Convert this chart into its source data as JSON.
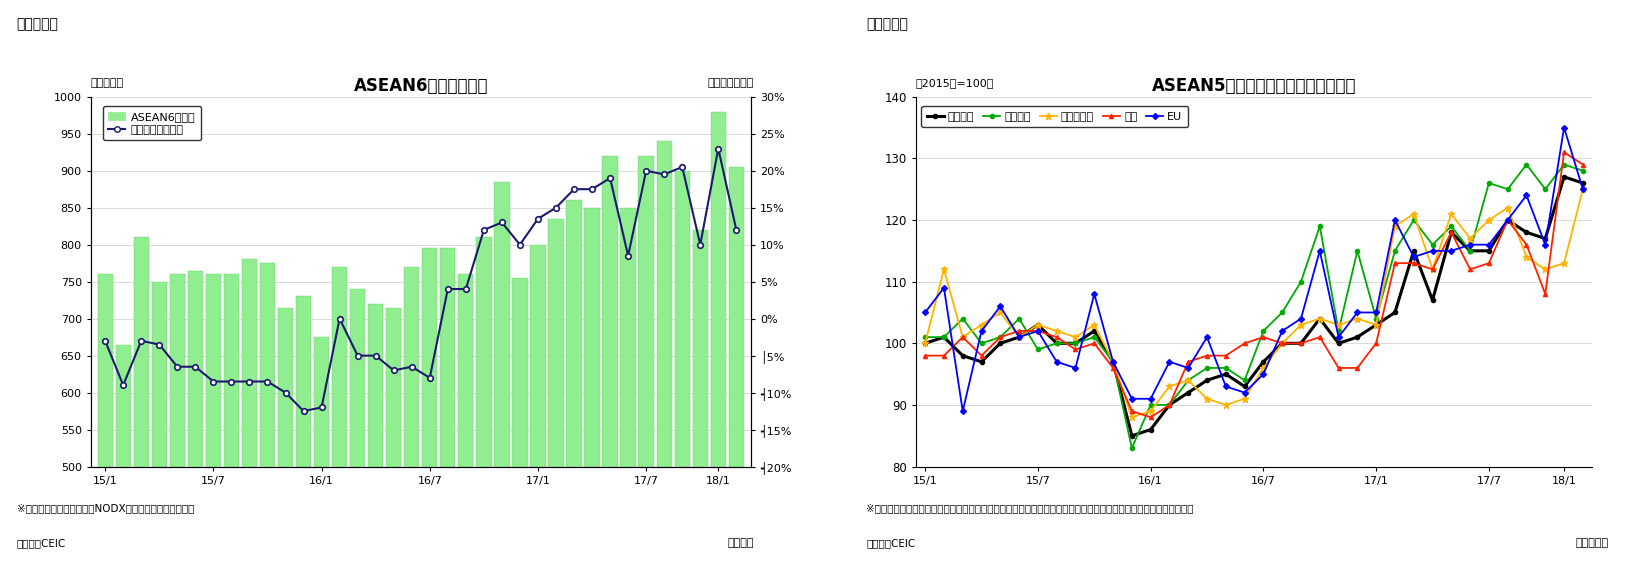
{
  "chart1": {
    "title": "ASEAN6カ国の輸出額",
    "header": "（図表１）",
    "ylabel_left": "（億ドル）",
    "ylabel_right": "（前年同月比）",
    "xlabel": "（年月）",
    "note1": "※シンガポールの輸出額はNODX（石油と再輸出除く）。",
    "note2": "（資料）CEIC",
    "bar_color": "#90EE90",
    "line_color": "#1a1a6e",
    "ylim_left": [
      500,
      1000
    ],
    "ylim_right": [
      -0.2,
      0.3
    ],
    "yticks_left": [
      500,
      550,
      600,
      650,
      700,
      750,
      800,
      850,
      900,
      950,
      1000
    ],
    "yticks_right_labels": [
      "30%",
      "25%",
      "20%",
      "15%",
      "10%",
      "5%",
      "0%",
      "│5%",
      "┥10%",
      "┥15%",
      "┥20%"
    ],
    "yticks_right_vals": [
      0.3,
      0.25,
      0.2,
      0.15,
      0.1,
      0.05,
      0.0,
      -0.05,
      -0.1,
      -0.15,
      -0.2
    ],
    "xtick_labels": [
      "15/1",
      "15/7",
      "16/1",
      "16/7",
      "17/1",
      "17/7",
      "18/1"
    ],
    "legend_bar": "ASEAN6ヵ国計",
    "legend_line": "増加率（右目盛）",
    "bar_values": [
      760,
      665,
      810,
      750,
      760,
      765,
      760,
      760,
      780,
      775,
      715,
      730,
      675,
      770,
      740,
      720,
      715,
      770,
      795,
      795,
      760,
      810,
      885,
      755,
      800,
      835,
      860,
      850,
      920,
      850,
      920,
      940,
      900,
      820,
      980,
      905
    ],
    "line_values": [
      -0.03,
      -0.09,
      -0.03,
      -0.035,
      -0.065,
      -0.065,
      -0.085,
      -0.085,
      -0.085,
      -0.085,
      -0.1,
      -0.125,
      -0.12,
      0.0,
      -0.05,
      -0.05,
      -0.07,
      -0.065,
      -0.08,
      0.04,
      0.04,
      0.12,
      0.13,
      0.1,
      0.135,
      0.15,
      0.175,
      0.175,
      0.19,
      0.085,
      0.2,
      0.195,
      0.205,
      0.1,
      0.23,
      0.12
    ],
    "xtick_positions": [
      0,
      6,
      12,
      18,
      24,
      30,
      34
    ]
  },
  "chart2": {
    "title": "ASEAN5ヵ国　仕向け地別の輸出動向",
    "header": "（図表２）",
    "ylabel_left": "（2015年=100）",
    "xlabel": "（年／月）",
    "note1": "※タイ、マレーシア、シンガポール（地場輸出）、インドネシア（非石油ガス輸出）、フィリピンの輸出より算出。",
    "note2": "（資料）CEIC",
    "ylim": [
      80,
      140
    ],
    "yticks": [
      80,
      90,
      100,
      110,
      120,
      130,
      140
    ],
    "xtick_labels": [
      "15/1",
      "15/7",
      "16/1",
      "16/7",
      "17/1",
      "17/7",
      "18/1"
    ],
    "xtick_positions": [
      0,
      6,
      12,
      18,
      24,
      30,
      34
    ],
    "series": {
      "輸出全体": {
        "color": "#000000",
        "marker": "o",
        "markersize": 3,
        "linewidth": 2.2,
        "linestyle": "-",
        "values": [
          100,
          101,
          98,
          97,
          100,
          101,
          103,
          100,
          100,
          102,
          97,
          85,
          86,
          90,
          92,
          94,
          95,
          93,
          97,
          100,
          100,
          104,
          100,
          101,
          103,
          105,
          115,
          107,
          118,
          115,
          115,
          120,
          118,
          117,
          127,
          126
        ]
      },
      "東アジア": {
        "color": "#00AA00",
        "marker": "o",
        "markersize": 3,
        "linewidth": 1.3,
        "linestyle": "-",
        "values": [
          101,
          101,
          104,
          100,
          101,
          104,
          99,
          100,
          100,
          101,
          97,
          83,
          90,
          90,
          94,
          96,
          96,
          94,
          102,
          105,
          110,
          119,
          102,
          115,
          104,
          115,
          120,
          116,
          119,
          115,
          126,
          125,
          129,
          125,
          129,
          128
        ]
      },
      "東南アジア": {
        "color": "#FFB300",
        "marker": "*",
        "markersize": 5,
        "linewidth": 1.3,
        "linestyle": "-",
        "values": [
          100,
          112,
          101,
          103,
          105,
          101,
          103,
          102,
          101,
          103,
          97,
          88,
          89,
          93,
          94,
          91,
          90,
          91,
          96,
          100,
          103,
          104,
          103,
          104,
          103,
          119,
          121,
          112,
          121,
          117,
          120,
          122,
          114,
          112,
          113,
          125
        ]
      },
      "北米": {
        "color": "#FF2200",
        "marker": "^",
        "markersize": 3,
        "linewidth": 1.3,
        "linestyle": "-",
        "values": [
          98,
          98,
          101,
          98,
          101,
          102,
          102,
          101,
          99,
          100,
          96,
          89,
          88,
          90,
          97,
          98,
          98,
          100,
          101,
          100,
          100,
          101,
          96,
          96,
          100,
          113,
          113,
          112,
          118,
          112,
          113,
          120,
          116,
          108,
          131,
          129
        ]
      },
      "EU": {
        "color": "#0000FF",
        "marker": "D",
        "markersize": 3,
        "linewidth": 1.3,
        "linestyle": "-",
        "values": [
          105,
          109,
          89,
          102,
          106,
          101,
          102,
          97,
          96,
          108,
          97,
          91,
          91,
          97,
          96,
          101,
          93,
          92,
          95,
          102,
          104,
          115,
          101,
          105,
          105,
          120,
          114,
          115,
          115,
          116,
          116,
          120,
          124,
          116,
          135,
          125
        ]
      }
    }
  },
  "fig_bg": "#ffffff"
}
